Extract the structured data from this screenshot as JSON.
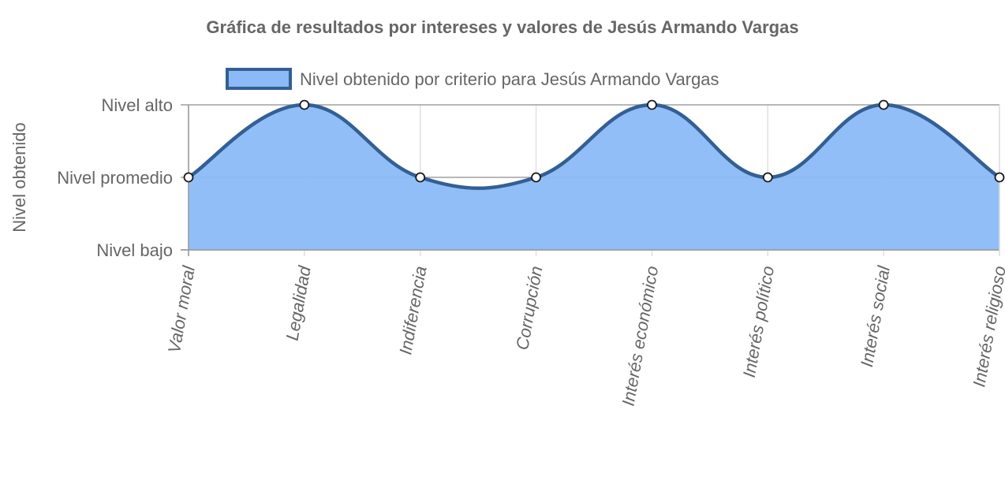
{
  "chart_data": {
    "type": "area",
    "title": "Gráfica de resultados por intereses y valores de Jesús Armando Vargas",
    "ylabel": "Nivel obtenido",
    "xlabel": "",
    "categories": [
      "Valor moral",
      "Legalidad",
      "Indiferencia",
      "Corrupción",
      "Interés económico",
      "Interés político",
      "Interés social",
      "Interés religioso"
    ],
    "y_tick_labels": [
      "Nivel bajo",
      "Nivel promedio",
      "Nivel alto"
    ],
    "ylim": [
      1,
      3
    ],
    "series": [
      {
        "name": "Nivel obtenido por criterio para Jesús Armando Vargas",
        "values": [
          2,
          3,
          2,
          2,
          3,
          2,
          3,
          2
        ]
      }
    ],
    "legend_position": "top",
    "grid": true,
    "colors": {
      "fill": "#8bbaf7",
      "line": "#335f95",
      "point_fill": "#ffffff",
      "point_stroke": "#1a1a1a",
      "grid": "#e0e0e0",
      "axis": "#999999",
      "text": "#666666"
    }
  }
}
